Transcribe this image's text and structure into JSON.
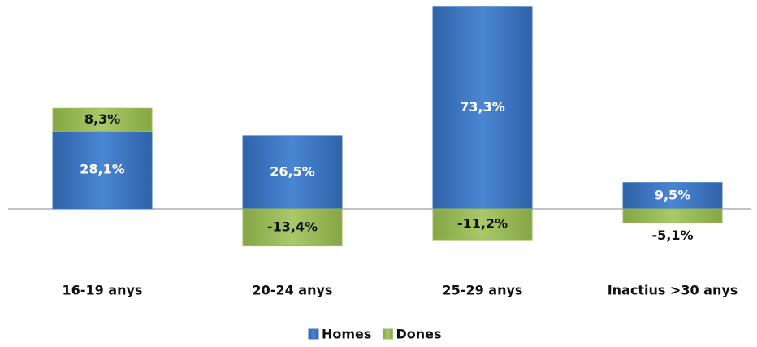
{
  "chart_data": {
    "type": "stacked_bar",
    "categories": [
      "16-19 anys",
      "20-24 anys",
      "25-29 anys",
      "Inactius >30 anys"
    ],
    "series": [
      {
        "name": "Homes",
        "color": "#3b74c2",
        "values": [
          28.1,
          26.5,
          73.3,
          9.5
        ],
        "value_labels": [
          "28,1%",
          "26,5%",
          "73,3%",
          "9,5%"
        ]
      },
      {
        "name": "Dones",
        "color": "#9bbb59",
        "values": [
          8.3,
          -13.4,
          -11.2,
          -5.1
        ],
        "value_labels": [
          "8,3%",
          "-13,4%",
          "-11,2%",
          "-5,1%"
        ]
      }
    ],
    "ylim": [
      -50,
      75
    ],
    "legend": "bottom"
  }
}
